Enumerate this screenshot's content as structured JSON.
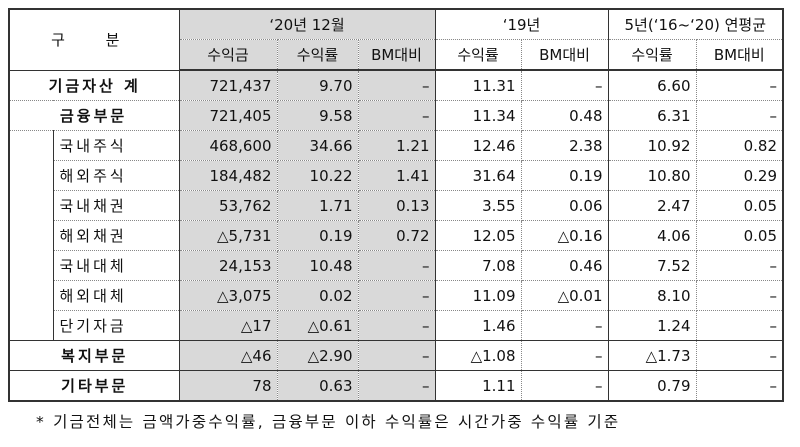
{
  "table": {
    "corner": "구 분",
    "groups": [
      "‘20년 12월",
      "‘19년",
      "5년(‘16~‘20) 연평균"
    ],
    "subheaders": [
      "수익금",
      "수익률",
      "BM대비",
      "수익률",
      "BM대비",
      "수익률",
      "BM대비"
    ],
    "rows": [
      [
        "기금자산 계",
        "721,437",
        "9.70",
        "–",
        "11.31",
        "–",
        "6.60",
        "–"
      ],
      [
        "금융부문",
        "721,405",
        "9.58",
        "–",
        "11.34",
        "0.48",
        "6.31",
        "–"
      ],
      [
        "국내주식",
        "468,600",
        "34.66",
        "1.21",
        "12.46",
        "2.38",
        "10.92",
        "0.82"
      ],
      [
        "해외주식",
        "184,482",
        "10.22",
        "1.41",
        "31.64",
        "0.19",
        "10.80",
        "0.29"
      ],
      [
        "국내채권",
        "53,762",
        "1.71",
        "0.13",
        "3.55",
        "0.06",
        "2.47",
        "0.05"
      ],
      [
        "해외채권",
        "△5,731",
        "0.19",
        "0.72",
        "12.05",
        "△0.16",
        "4.06",
        "0.05"
      ],
      [
        "국내대체",
        "24,153",
        "10.48",
        "–",
        "7.08",
        "0.46",
        "7.52",
        "–"
      ],
      [
        "해외대체",
        "△3,075",
        "0.02",
        "–",
        "11.09",
        "△0.01",
        "8.10",
        "–"
      ],
      [
        "단기자금",
        "△17",
        "△0.61",
        "–",
        "1.46",
        "–",
        "1.24",
        "–"
      ],
      [
        "복지부문",
        "△46",
        "△2.90",
        "–",
        "△1.08",
        "–",
        "△1.73",
        "–"
      ],
      [
        "기타부문",
        "78",
        "0.63",
        "–",
        "1.11",
        "–",
        "0.79",
        "–"
      ]
    ]
  },
  "footnote": "* 기금전체는 금액가중수익률, 금융부문 이하 수익률은 시간가중 수익률 기준"
}
